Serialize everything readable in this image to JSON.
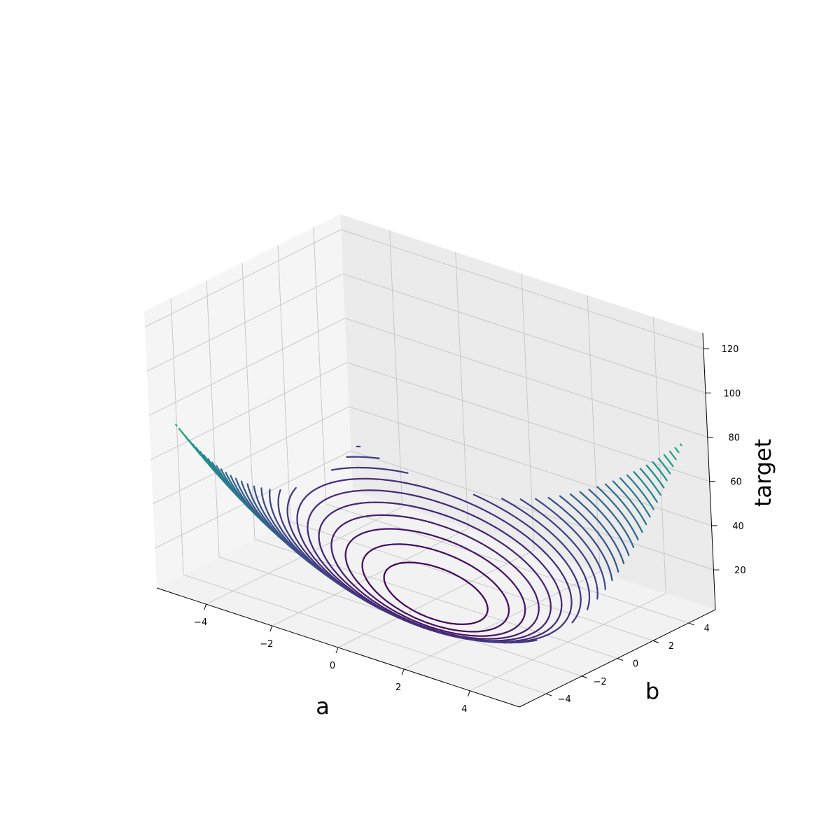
{
  "chart_data": {
    "type": "contour3d",
    "function": "target = a^2 + b^2 + a*b + 2",
    "xlabel": "a",
    "ylabel": "b",
    "zlabel": "target",
    "xlim": [
      -5.5,
      5.5
    ],
    "ylim": [
      -5.5,
      5.5
    ],
    "zlim": [
      2,
      127
    ],
    "xticks": [
      -4,
      -2,
      0,
      2,
      4
    ],
    "yticks": [
      -4,
      -2,
      0,
      2,
      4
    ],
    "zticks": [
      20,
      40,
      60,
      80,
      100,
      120
    ],
    "contour_levels": {
      "start": 2,
      "end": 123,
      "count": 50
    },
    "grid": true,
    "colormap": [
      "#440154",
      "#482878",
      "#3e4989",
      "#31688e",
      "#26828e",
      "#1f9e89",
      "#35b779",
      "#6ece58",
      "#b5de2b",
      "#fde725"
    ]
  }
}
